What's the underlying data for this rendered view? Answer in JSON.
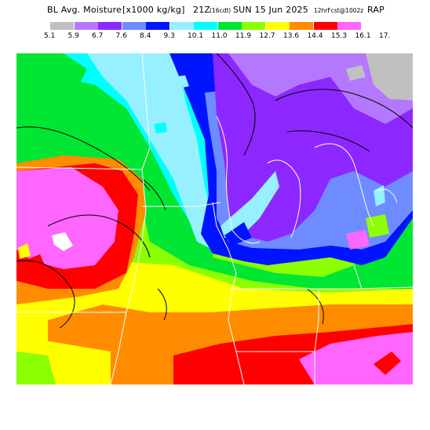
{
  "header": {
    "product": "BL Avg. Moisture",
    "units": "[x1000 kg/kg]",
    "valid_time": "21Z",
    "forecast_hour": "(16cdt)",
    "date": "SUN 15 Jun 2025",
    "init": "12hrFcst@1002z",
    "model": "RAP"
  },
  "legend": {
    "thresholds": [
      "5.1",
      "5.9",
      "6.7",
      "7.6",
      "8.4",
      "9.3",
      "10.1",
      "11.0",
      "11.9",
      "12.7",
      "13.6",
      "14.4",
      "15.3",
      "16.1",
      "17."
    ],
    "colors": [
      "#c0c0c0",
      "#b478ff",
      "#8c28ff",
      "#6e8cff",
      "#0014ff",
      "#96f0ff",
      "#00ffff",
      "#00e632",
      "#8cff00",
      "#ffff00",
      "#ff8c00",
      "#ff0000",
      "#ff66ff",
      "#ffffff"
    ]
  },
  "map": {
    "region": "upper-midwest",
    "features": [
      "moisture-fill",
      "state-borders",
      "coastlines",
      "contour-lines"
    ]
  }
}
